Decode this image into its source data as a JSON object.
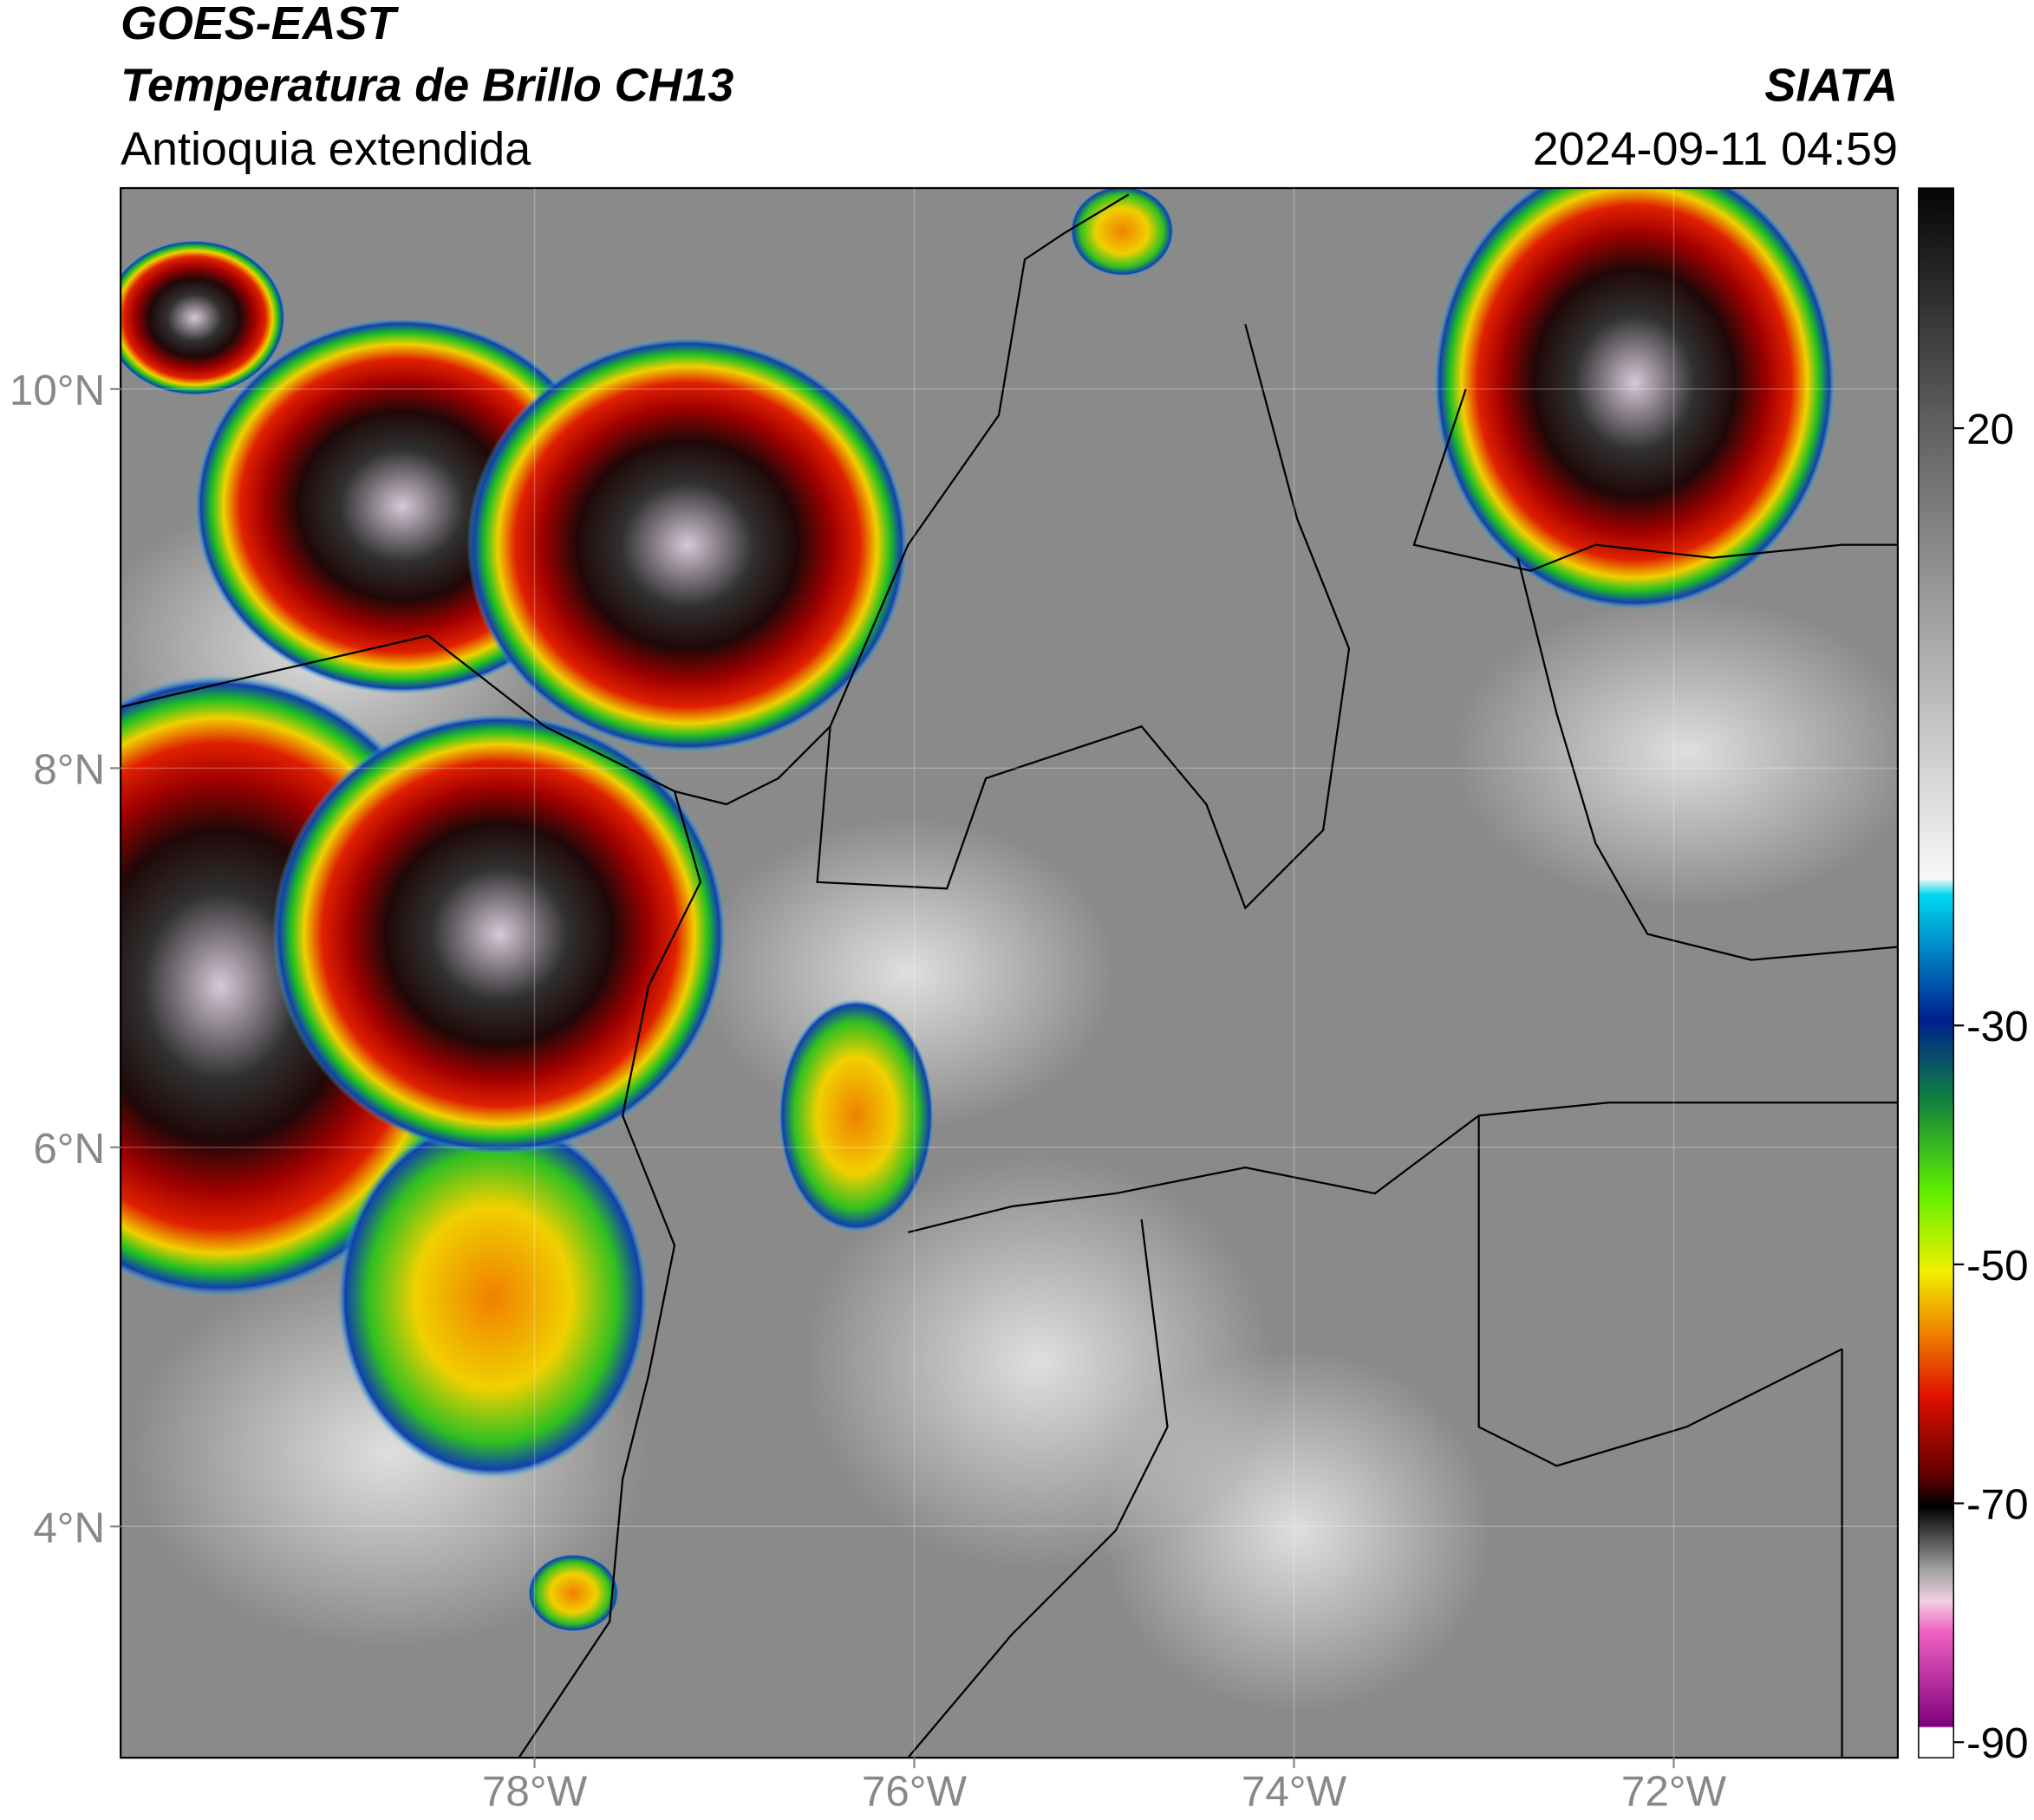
{
  "header": {
    "title": "GOES-EAST",
    "subtitle": "Temperatura de Brillo CH13",
    "region": "Antioquia extendida",
    "source": "SIATA",
    "datetime": "2024-09-11 04:59"
  },
  "map": {
    "xlim": [
      -80.18,
      -70.82
    ],
    "ylim": [
      2.78,
      11.06
    ],
    "xticks": [
      {
        "value": -78,
        "label": "78°W"
      },
      {
        "value": -76,
        "label": "76°W"
      },
      {
        "value": -74,
        "label": "74°W"
      },
      {
        "value": -72,
        "label": "72°W"
      }
    ],
    "yticks": [
      {
        "value": 10,
        "label": "10°N"
      },
      {
        "value": 8,
        "label": "8°N"
      },
      {
        "value": 6,
        "label": "6°N"
      },
      {
        "value": 4,
        "label": "4°N"
      }
    ],
    "grid": true
  },
  "colorbar": {
    "lim": [
      -91.3,
      40.1
    ],
    "ticks": [
      20,
      -30,
      -50,
      -70,
      -90
    ]
  }
}
